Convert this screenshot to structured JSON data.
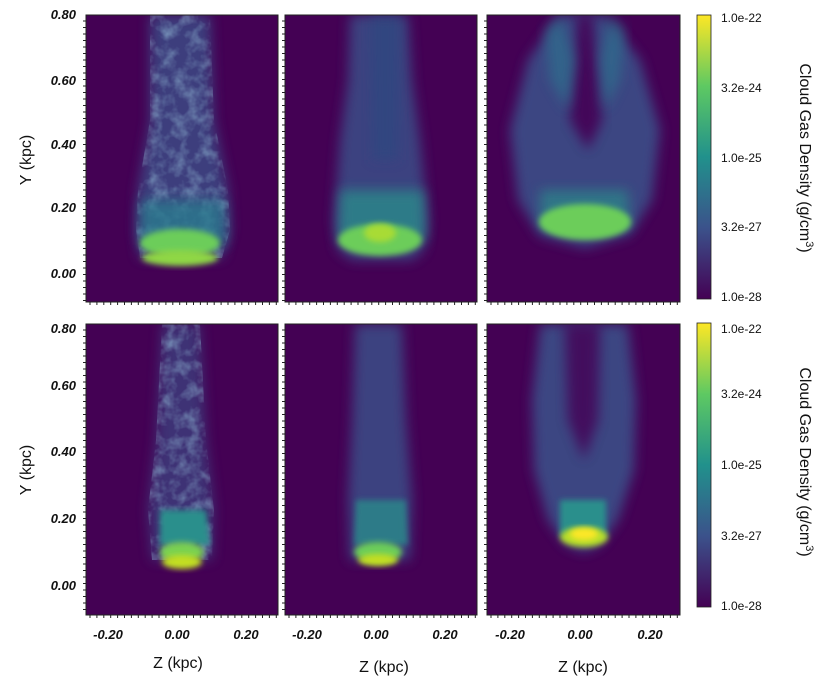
{
  "figure": {
    "y_axis_label": "Y (kpc)",
    "x_axis_label": "Z (kpc)",
    "y_ticks": [
      "0.80",
      "0.60",
      "0.40",
      "0.20",
      "0.00"
    ],
    "x_ticks": [
      "-0.20",
      "0.00",
      "0.20"
    ],
    "colorbar": {
      "title": "Cloud Gas Density  (g/cm",
      "title_sup": "3",
      "title_close": ")",
      "ticks": [
        "1.0e-22",
        "3.2e-24",
        "1.0e-25",
        "3.2e-27",
        "1.0e-28"
      ],
      "colormap": [
        "#440154",
        "#3b528b",
        "#21918c",
        "#5ec962",
        "#fde725"
      ]
    },
    "background_color": "#440154",
    "rows": 2,
    "columns": 3
  }
}
